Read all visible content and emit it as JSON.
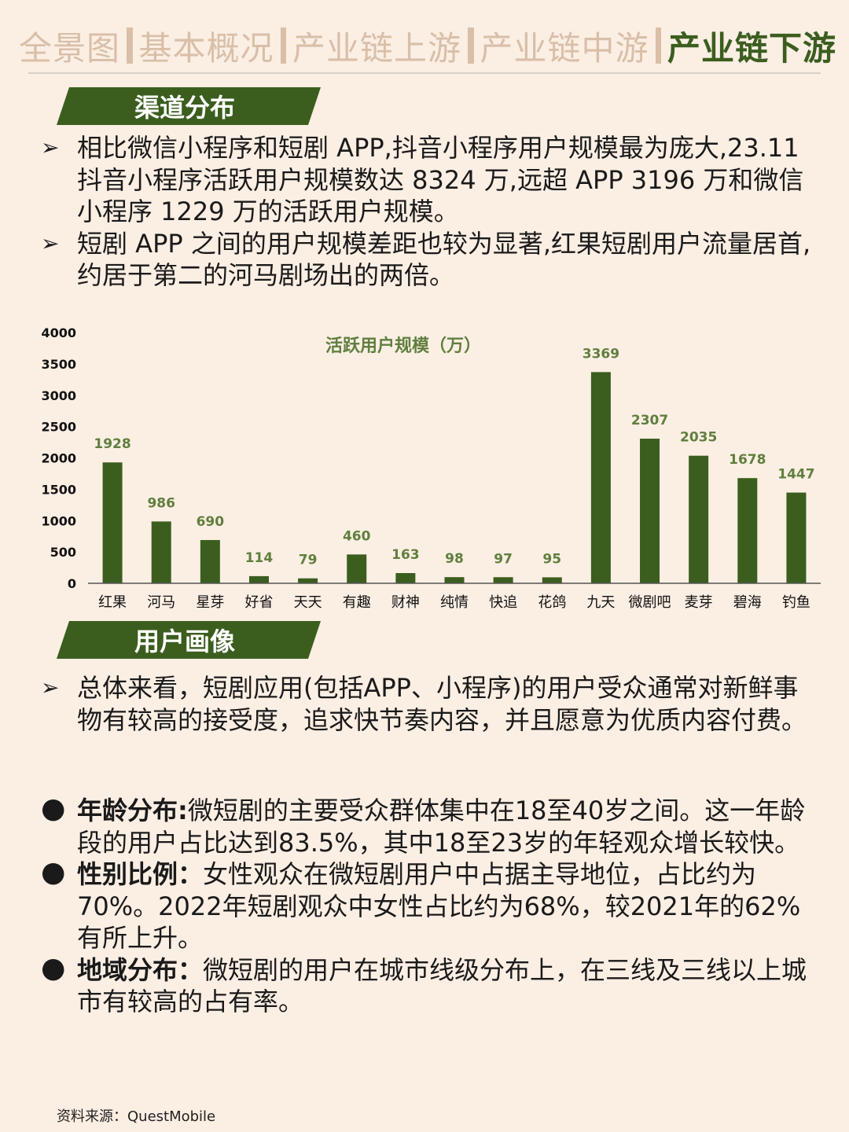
{
  "nav": {
    "items": [
      "全景图",
      "基本概况",
      "产业链上游",
      "产业链中游",
      "产业链下游"
    ],
    "active_index": 4
  },
  "sections": {
    "channel": {
      "title": "渠道分布",
      "bullets": [
        "相比微信小程序和短剧 APP,抖音小程序用户规模最为庞大,23.11抖音小程序活跃用户规模数达 8324 万,远超 APP 3196 万和微信小程序 1229 万的活跃用户规模。",
        "短剧 APP 之间的用户规模差距也较为显著,红果短剧用户流量居首,约居于第二的河马剧场出的两倍。"
      ]
    },
    "persona": {
      "title": "用户画像",
      "intro": "总体来看，短剧应用(包括APP、小程序)的用户受众通常对新鲜事物有较高的接受度，追求快节奏内容，并且愿意为优质内容付费。",
      "points": [
        {
          "label": "年龄分布:",
          "text": "微短剧的主要受众群体集中在18至40岁之间。这一年龄段的用户占比达到83.5%，其中18至23岁的年轻观众增长较快。"
        },
        {
          "label": "性别比例：",
          "text": "女性观众在微短剧用户中占据主导地位，占比约为70%。2022年短剧观众中女性占比约为68%，较2021年的62%有所上升。"
        },
        {
          "label": "地域分布：",
          "text": "微短剧的用户在城市线级分布上，在三线及三线以上城市有较高的占有率。"
        }
      ]
    }
  },
  "chart_data": {
    "type": "bar",
    "title": "活跃用户规模（万）",
    "categories": [
      "红果",
      "河马",
      "星芽",
      "好省",
      "天天",
      "有趣",
      "财神",
      "纯情",
      "快追",
      "花鸽",
      "九天",
      "微剧吧",
      "麦芽",
      "碧海",
      "钓鱼"
    ],
    "values": [
      1928,
      986,
      690,
      114,
      79,
      460,
      163,
      98,
      97,
      95,
      3369,
      2307,
      2035,
      1678,
      1447
    ],
    "yticks": [
      0,
      500,
      1000,
      1500,
      2000,
      2500,
      3000,
      3500,
      4000
    ],
    "ylim": [
      0,
      4000
    ],
    "bar_color": "#3b5e1f",
    "label_color": "#5f7f3e"
  },
  "source": "资料来源：QuestMobile"
}
